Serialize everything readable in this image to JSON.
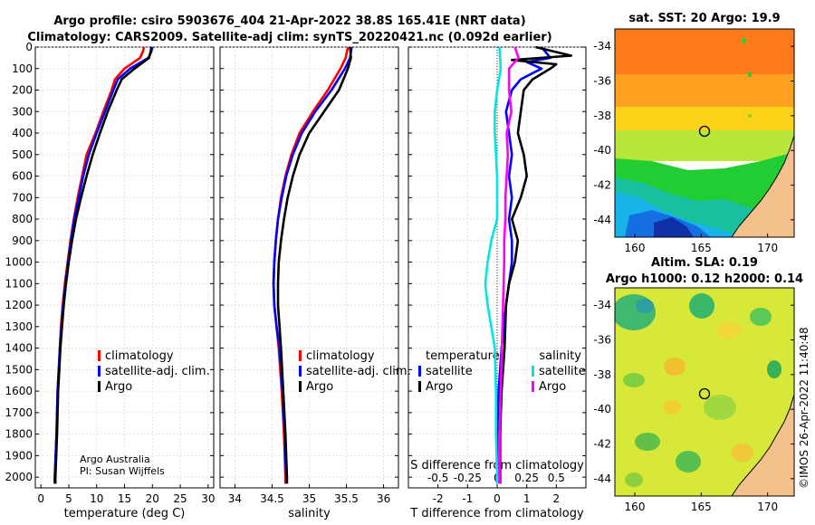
{
  "title_line1": "Argo profile: csiro 5903676_404 21-Apr-2022 38.8S 165.41E (NRT data)",
  "title_line2": "Climatology: CARS2009. Satellite-adj clim: synTS_20220421.nc (0.092d earlier)",
  "credit_line1": "Argo Australia",
  "credit_line2": "PI: Susan Wijffels",
  "watermark": "©IMOS 26-Apr-2022 11:40:48",
  "colors": {
    "climatology": "#ff0000",
    "satellite": "#0000ff",
    "argo": "#000000",
    "sat_salinity": "#00e5e5",
    "argo_salinity": "#ff00ff",
    "coast": "#f4c08c"
  },
  "chart_data": [
    {
      "id": "temperature",
      "type": "line",
      "xlabel": "temperature (deg C)",
      "ylabel": "",
      "xlim": [
        -1,
        31
      ],
      "ylim": [
        2050,
        0
      ],
      "xticks": [
        0,
        5,
        10,
        15,
        20,
        25,
        30
      ],
      "yticks": [
        0,
        100,
        200,
        300,
        400,
        500,
        600,
        700,
        800,
        900,
        1000,
        1100,
        1200,
        1300,
        1400,
        1500,
        1600,
        1700,
        1800,
        1900,
        2000
      ],
      "legend": {
        "position": "lower-middle",
        "entries": [
          "climatology",
          "satellite-adj. clim.",
          "Argo"
        ]
      },
      "series": [
        {
          "name": "climatology",
          "color": "#ff0000",
          "depth": [
            0,
            20,
            50,
            100,
            150,
            200,
            300,
            400,
            500,
            600,
            700,
            800,
            900,
            1000,
            1100,
            1200,
            1300,
            1400,
            1500,
            1600,
            1800,
            2000,
            2030
          ],
          "values": [
            18.5,
            18.3,
            17.8,
            15.0,
            13.3,
            12.7,
            11.2,
            9.8,
            8.2,
            7.4,
            6.6,
            5.9,
            5.3,
            4.8,
            4.3,
            3.9,
            3.6,
            3.4,
            3.2,
            3.0,
            2.8,
            2.5,
            2.5
          ]
        },
        {
          "name": "satellite-adj. clim.",
          "color": "#0000ff",
          "depth": [
            0,
            20,
            50,
            100,
            150,
            200,
            300,
            400,
            500,
            600,
            700,
            800,
            900,
            1000,
            1100,
            1200,
            1300,
            1400,
            1500,
            1600,
            1800,
            2000,
            2030
          ],
          "values": [
            20.0,
            19.8,
            19.3,
            16.0,
            13.8,
            13.0,
            11.5,
            10.0,
            8.6,
            7.6,
            6.8,
            6.0,
            5.4,
            4.9,
            4.4,
            4.0,
            3.7,
            3.4,
            3.2,
            3.0,
            2.8,
            2.5,
            2.5
          ]
        },
        {
          "name": "Argo",
          "color": "#000000",
          "depth": [
            0,
            20,
            50,
            100,
            150,
            200,
            300,
            400,
            500,
            600,
            700,
            800,
            900,
            1000,
            1100,
            1200,
            1300,
            1400,
            1500,
            1600,
            1800,
            2000,
            2030
          ],
          "values": [
            19.8,
            19.7,
            19.4,
            16.8,
            14.5,
            13.6,
            12.0,
            10.6,
            9.3,
            8.2,
            7.2,
            6.3,
            5.6,
            5.0,
            4.5,
            4.1,
            3.8,
            3.5,
            3.3,
            3.1,
            2.9,
            2.6,
            2.6
          ]
        }
      ]
    },
    {
      "id": "salinity",
      "type": "line",
      "xlabel": "salinity",
      "ylabel": "",
      "xlim": [
        33.8,
        36.2
      ],
      "ylim": [
        2050,
        0
      ],
      "xticks": [
        34,
        34.5,
        35,
        35.5,
        36
      ],
      "legend": {
        "position": "lower-right",
        "entries": [
          "climatology",
          "satellite-adj. clim.",
          "Argo"
        ]
      },
      "series": [
        {
          "name": "climatology",
          "color": "#ff0000",
          "depth": [
            0,
            50,
            100,
            200,
            300,
            400,
            500,
            600,
            700,
            800,
            900,
            1000,
            1100,
            1200,
            1300,
            1400,
            1600,
            1800,
            2000,
            2030
          ],
          "values": [
            35.52,
            35.49,
            35.42,
            35.25,
            35.05,
            34.87,
            34.76,
            34.68,
            34.62,
            34.58,
            34.55,
            34.53,
            34.52,
            34.53,
            34.56,
            34.59,
            34.63,
            34.66,
            34.68,
            34.68
          ]
        },
        {
          "name": "satellite-adj. clim.",
          "color": "#0000ff",
          "depth": [
            0,
            50,
            100,
            200,
            300,
            400,
            500,
            600,
            700,
            800,
            900,
            1000,
            1100,
            1200,
            1300,
            1400,
            1600,
            1800,
            2000,
            2030
          ],
          "values": [
            35.57,
            35.55,
            35.48,
            35.3,
            35.08,
            34.9,
            34.78,
            34.69,
            34.63,
            34.58,
            34.55,
            34.53,
            34.52,
            34.53,
            34.56,
            34.6,
            34.64,
            34.67,
            34.69,
            34.69
          ]
        },
        {
          "name": "Argo",
          "color": "#000000",
          "depth": [
            0,
            50,
            100,
            200,
            300,
            400,
            500,
            600,
            700,
            800,
            900,
            1000,
            1100,
            1200,
            1300,
            1400,
            1600,
            1800,
            2000,
            2030
          ],
          "values": [
            35.55,
            35.56,
            35.52,
            35.4,
            35.2,
            35.0,
            34.87,
            34.78,
            34.71,
            34.66,
            34.62,
            34.59,
            34.58,
            34.58,
            34.6,
            34.62,
            34.65,
            34.68,
            34.7,
            34.7
          ]
        }
      ]
    },
    {
      "id": "difference",
      "type": "line",
      "xlabel": "T difference from climatology",
      "xlabel_top": "S difference from climatology",
      "xlim": [
        -3,
        3
      ],
      "ylim": [
        2050,
        0
      ],
      "xticks": [
        -2,
        -1,
        0,
        1,
        2
      ],
      "xticks_salinity": [
        "-0.5",
        "-0.25",
        "0",
        "0.25",
        "0.5"
      ],
      "legend_left": {
        "title": "temperature",
        "entries": [
          "satellite",
          "Argo"
        ]
      },
      "legend_right": {
        "title": "salinity",
        "entries": [
          "satellite",
          "Argo"
        ]
      },
      "series": [
        {
          "name": "temperature satellite",
          "color": "#0000ff",
          "depth": [
            0,
            50,
            70,
            100,
            150,
            200,
            300,
            400,
            500,
            600,
            700,
            800,
            900,
            1000,
            1100,
            1200,
            1400,
            1600,
            1800,
            2000,
            2030
          ],
          "values": [
            1.5,
            1.8,
            1.0,
            1.5,
            0.8,
            0.5,
            0.3,
            0.4,
            0.5,
            0.4,
            0.5,
            0.4,
            0.5,
            0.5,
            0.4,
            0.3,
            0.15,
            0.05,
            0.0,
            0.0,
            0.0
          ]
        },
        {
          "name": "temperature Argo",
          "color": "#000000",
          "depth": [
            0,
            40,
            60,
            80,
            100,
            150,
            200,
            300,
            400,
            500,
            600,
            700,
            800,
            900,
            1000,
            1100,
            1200,
            1400,
            1600,
            1800,
            2000,
            2030
          ],
          "values": [
            1.3,
            2.5,
            0.5,
            2.0,
            1.8,
            1.2,
            0.9,
            0.8,
            0.7,
            0.9,
            1.0,
            0.8,
            0.5,
            0.7,
            0.6,
            0.4,
            0.3,
            0.25,
            0.15,
            0.1,
            0.1,
            0.1
          ]
        },
        {
          "name": "salinity satellite",
          "color": "#00e5e5",
          "depth": [
            0,
            100,
            200,
            300,
            400,
            500,
            600,
            800,
            900,
            1000,
            1100,
            1200,
            1300,
            1400,
            1600,
            1800,
            2000,
            2030
          ],
          "values": [
            0.02,
            0.03,
            0.0,
            -0.02,
            -0.02,
            -0.01,
            0.0,
            0.0,
            -0.05,
            -0.08,
            -0.1,
            -0.08,
            -0.05,
            -0.02,
            -0.01,
            -0.01,
            0.0,
            0.0
          ]
        },
        {
          "name": "salinity Argo",
          "color": "#ff00ff",
          "depth": [
            0,
            50,
            100,
            200,
            300,
            400,
            500,
            600,
            700,
            800,
            900,
            1000,
            1200,
            1400,
            1600,
            1800,
            2000,
            2030
          ],
          "values": [
            0.15,
            0.18,
            0.1,
            0.1,
            0.12,
            0.08,
            0.09,
            0.08,
            0.07,
            0.07,
            0.06,
            0.06,
            0.05,
            0.04,
            0.03,
            0.02,
            0.02,
            0.02
          ]
        }
      ]
    },
    {
      "id": "sst_map",
      "type": "heatmap",
      "title": "sat. SST: 20 Argo: 19.9",
      "xlim": [
        158.5,
        172
      ],
      "ylim": [
        -45,
        -33
      ],
      "xticks": [
        160,
        165,
        170
      ],
      "yticks": [
        -34,
        -36,
        -38,
        -40,
        -42,
        -44
      ],
      "marker": {
        "lon": 165.41,
        "lat": -38.8
      }
    },
    {
      "id": "sla_map",
      "type": "heatmap",
      "title_line1": "Altim. SLA: 0.19",
      "title_line2": "Argo h1000: 0.12 h2000: 0.14",
      "xlim": [
        158.5,
        172
      ],
      "ylim": [
        -45,
        -33
      ],
      "xticks": [
        160,
        165,
        170
      ],
      "yticks": [
        -34,
        -36,
        -38,
        -40,
        -42,
        -44
      ],
      "marker": {
        "lon": 165.41,
        "lat": -38.8
      }
    }
  ]
}
